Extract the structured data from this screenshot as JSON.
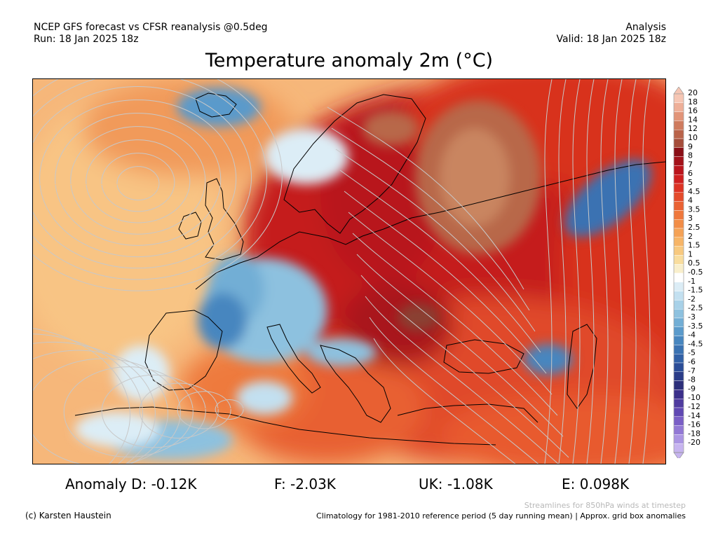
{
  "header": {
    "model_line": "NCEP GFS forecast vs CFSR reanalysis @0.5deg",
    "run_line": "Run: 18 Jan 2025 18z",
    "analysis_label": "Analysis",
    "valid_line": "Valid: 18 Jan 2025 18z"
  },
  "title": "Temperature anomaly 2m (°C)",
  "map": {
    "region": "Europe",
    "land_outline_color": "#000000",
    "streamline_color": "#c8c8c8"
  },
  "colorbar": {
    "labels": [
      "20",
      "18",
      "16",
      "14",
      "12",
      "10",
      "9",
      "8",
      "7",
      "6",
      "5",
      "4.5",
      "4",
      "3.5",
      "3",
      "2.5",
      "2",
      "1.5",
      "1",
      "0.5",
      "-0.5",
      "-1",
      "-1.5",
      "-2",
      "-2.5",
      "-3",
      "-3.5",
      "-4",
      "-4.5",
      "-5",
      "-6",
      "-7",
      "-8",
      "-9",
      "-10",
      "-12",
      "-14",
      "-16",
      "-18",
      "-20"
    ],
    "colors": [
      "#f6c6b4",
      "#eeaf98",
      "#e29478",
      "#cf7b5e",
      "#b9634a",
      "#a54d3a",
      "#8a0f16",
      "#a3121a",
      "#ba151d",
      "#cf2020",
      "#dd3324",
      "#e44b2b",
      "#ea6233",
      "#ef783c",
      "#f28d47",
      "#f5a256",
      "#f7b567",
      "#f8c97f",
      "#f9dd9e",
      "#f9efcc",
      "#ffffff",
      "#dcedf6",
      "#c3e0f0",
      "#a8d1e8",
      "#8dc1df",
      "#72aed5",
      "#5a9acb",
      "#4786bf",
      "#3a72b2",
      "#3160a6",
      "#2b4d97",
      "#2a3c88",
      "#2c2f7a",
      "#3b2f8a",
      "#4f3b9f",
      "#6048b3",
      "#7a5ec6",
      "#9278d5",
      "#ab95e3",
      "#c6b4ef"
    ]
  },
  "stats": {
    "d": "Anomaly D: -0.12K",
    "f": "F: -2.03K",
    "uk": "UK: -1.08K",
    "e": "E: 0.098K"
  },
  "footer": {
    "streamline_note": "Streamlines for 850hPa winds at timestep",
    "copyright": "(c) Karsten Haustein",
    "climatology_note": "Climatology for 1981-2010 reference period (5 day running mean) | Approx. grid box anomalies"
  }
}
